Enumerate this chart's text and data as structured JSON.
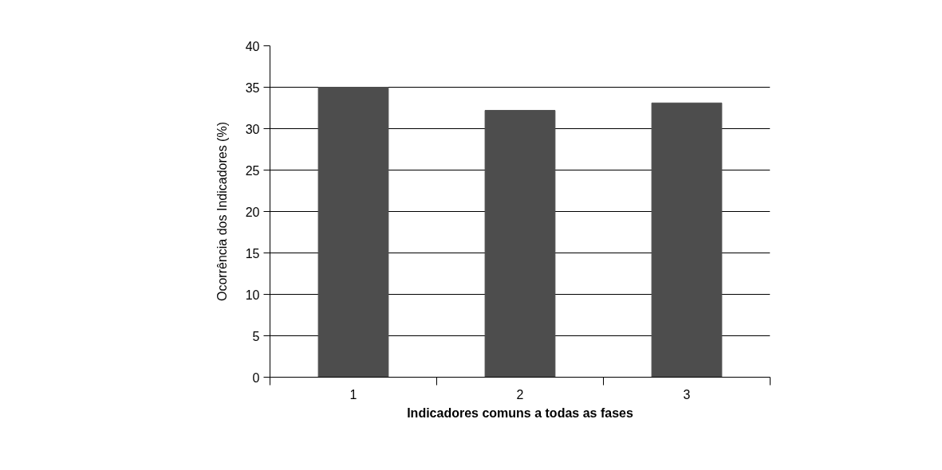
{
  "chart_data": {
    "type": "bar",
    "categories": [
      "1",
      "2",
      "3"
    ],
    "values": [
      35.0,
      32.2,
      33.1
    ],
    "color": "#4d4d4d",
    "xlabel": "Indicadores comuns a todas as fases",
    "ylabel": "Ocorrência dos Indicadores (%)",
    "ylim": [
      0,
      40
    ],
    "yticks": [
      0,
      5,
      10,
      15,
      20,
      25,
      30,
      35,
      40
    ],
    "grid": "y"
  }
}
